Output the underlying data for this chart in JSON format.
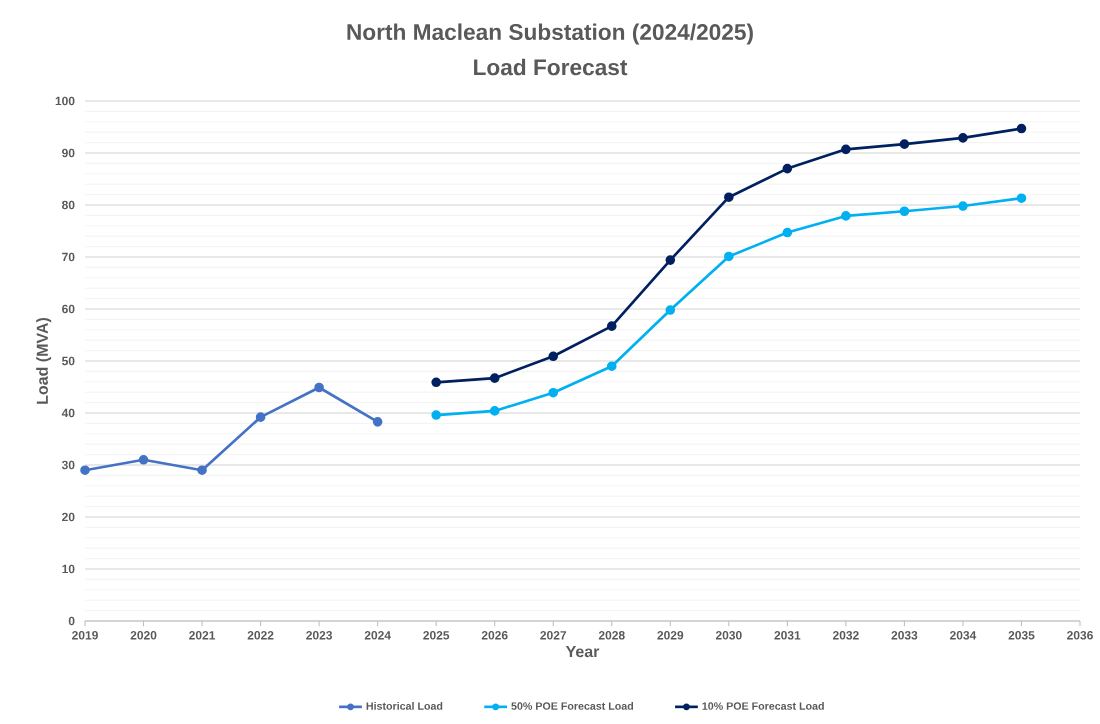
{
  "chart_data": {
    "type": "line",
    "title": "North Maclean Substation (2024/2025)",
    "subtitle": "Load Forecast",
    "xlabel": "Year",
    "ylabel": "Load (MVA)",
    "series": [
      {
        "name": "Historical Load",
        "color": "#4472c4",
        "x": [
          2019,
          2020,
          2021,
          2022,
          2023,
          2024
        ],
        "values": [
          29.0,
          31.0,
          29.0,
          39.2,
          44.9,
          38.3
        ]
      },
      {
        "name": "50% POE Forecast Load",
        "color": "#00b0f0",
        "x": [
          2025,
          2026,
          2027,
          2028,
          2029,
          2030,
          2031,
          2032,
          2033,
          2034,
          2035
        ],
        "values": [
          39.6,
          40.4,
          43.9,
          49.0,
          59.8,
          70.1,
          74.7,
          77.9,
          78.8,
          79.8,
          81.3
        ]
      },
      {
        "name": "10% POE Forecast Load",
        "color": "#002060",
        "x": [
          2025,
          2026,
          2027,
          2028,
          2029,
          2030,
          2031,
          2032,
          2033,
          2034,
          2035
        ],
        "values": [
          45.9,
          46.7,
          50.9,
          56.7,
          69.4,
          81.5,
          87.0,
          90.7,
          91.7,
          92.9,
          94.7
        ]
      }
    ],
    "xlim": [
      2019,
      2036
    ],
    "xticks": [
      2019,
      2020,
      2021,
      2022,
      2023,
      2024,
      2025,
      2026,
      2027,
      2028,
      2029,
      2030,
      2031,
      2032,
      2033,
      2034,
      2035,
      2036
    ],
    "ylim": [
      0,
      100
    ],
    "yticks": [
      0,
      10,
      20,
      30,
      40,
      50,
      60,
      70,
      80,
      90,
      100
    ],
    "grid": "y",
    "legend": "bottom",
    "marker": "circle",
    "line_style": "solid"
  }
}
